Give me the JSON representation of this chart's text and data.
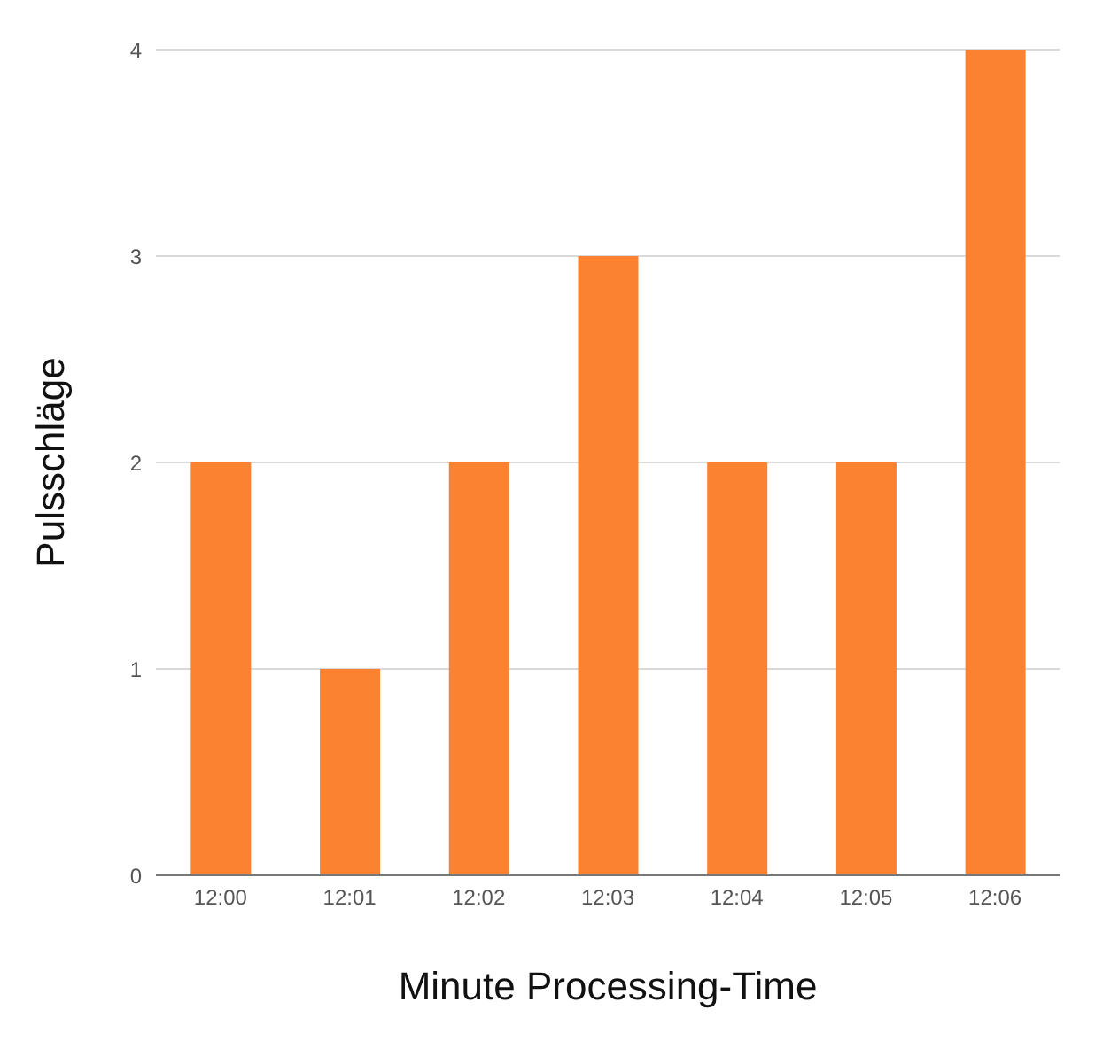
{
  "chart_data": {
    "type": "bar",
    "xlabel": "Minute Processing-Time",
    "ylabel": "Pulsschläge",
    "categories": [
      "12:00",
      "12:01",
      "12:02",
      "12:03",
      "12:04",
      "12:05",
      "12:06"
    ],
    "values": [
      2,
      1,
      2,
      3,
      2,
      2,
      4
    ],
    "color": "#fb8230",
    "ylim": [
      0,
      4
    ],
    "yticks": [
      0,
      1,
      2,
      3,
      4
    ],
    "grid": "y"
  }
}
